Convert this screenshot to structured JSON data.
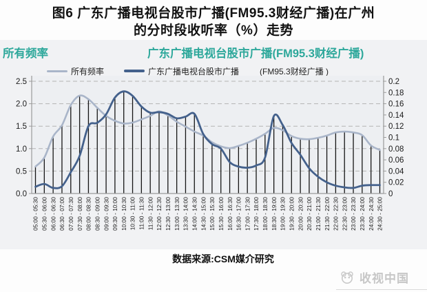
{
  "title": {
    "line1": "图6 广东广播电视台股市广播(FM95.3财经广播)在广州",
    "line2": "的分时段收听率（%）走势"
  },
  "header": {
    "left_label": "所有频率",
    "right_label": "广东广播电视台股市广播(FM95.3财经广播)",
    "color": "#2ea89b"
  },
  "legend": [
    {
      "label": "所有频率",
      "color": "#a9b5c9"
    },
    {
      "label": "广东广播电视台股市广播",
      "label_suffix": "(FM95.3财经广播 )",
      "color": "#44618c"
    }
  ],
  "footer": {
    "source": "数据来源:CSM媒介研究"
  },
  "watermark": {
    "label": "收视中国",
    "icon": "panda-tv-icon"
  },
  "chart_data": {
    "type": "line",
    "title": "广东广播电视台股市广播(FM95.3财经广播)在广州的分时段收听率（%）走势",
    "categories": [
      "05:00 - 05:30",
      "05:30 - 06:00",
      "06:00 - 06:30",
      "06:30 - 07:00",
      "07:00 - 07:30",
      "07:30 - 08:00",
      "08:00 - 08:30",
      "08:30 - 09:00",
      "09:00 - 09:30",
      "09:30 - 10:00",
      "10:00 - 10:30",
      "10:30 - 11:00",
      "11:00 - 11:30",
      "11:30 - 12:00",
      "12:00 - 12:30",
      "12:30 - 13:00",
      "13:00 - 13:30",
      "13:30 - 14:00",
      "14:00 - 14:30",
      "14:30 - 15:00",
      "15:00 - 15:30",
      "15:30 - 16:00",
      "16:00 - 16:30",
      "16:30 - 17:00",
      "17:00 - 17:30",
      "17:30 - 18:00",
      "18:00 - 18:30",
      "18:30 - 19:00",
      "19:00 - 19:30",
      "19:30 - 20:00",
      "20:00 - 20:30",
      "20:30 - 21:00",
      "21:00 - 21:30",
      "21:30 - 22:00",
      "22:00 - 22:30",
      "22:30 - 23:00",
      "23:00 - 23:30",
      "23:30 - 24:00",
      "24:00 - 24:30",
      "24:30 - 25:00"
    ],
    "series": [
      {
        "name": "所有频率",
        "axis": "left",
        "color": "#a9b5c9",
        "stroke_width": 2.6,
        "values": [
          0.6,
          0.8,
          1.27,
          1.52,
          1.97,
          2.18,
          2.1,
          1.91,
          1.73,
          1.62,
          1.56,
          1.58,
          1.65,
          1.73,
          1.83,
          1.74,
          1.6,
          1.49,
          1.38,
          1.29,
          1.14,
          1.05,
          1.01,
          1.06,
          1.13,
          1.22,
          1.33,
          1.46,
          1.41,
          1.28,
          1.22,
          1.21,
          1.24,
          1.29,
          1.36,
          1.38,
          1.36,
          1.3,
          1.07,
          0.97
        ]
      },
      {
        "name": "广东广播电视台股市广播(FM95.3财经广播)",
        "axis": "right",
        "color": "#44618c",
        "stroke_width": 2.8,
        "values": [
          0.012,
          0.017,
          0.01,
          0.013,
          0.038,
          0.067,
          0.12,
          0.126,
          0.141,
          0.171,
          0.182,
          0.174,
          0.155,
          0.144,
          0.145,
          0.142,
          0.134,
          0.137,
          0.142,
          0.106,
          0.088,
          0.08,
          0.056,
          0.048,
          0.046,
          0.05,
          0.064,
          0.138,
          0.122,
          0.09,
          0.069,
          0.045,
          0.03,
          0.02,
          0.014,
          0.011,
          0.01,
          0.014,
          0.015,
          0.015
        ]
      }
    ],
    "left_axis": {
      "min": 0,
      "max": 2.5,
      "step": 0.5,
      "ticks": [
        "0.0",
        "0.5",
        "1.0",
        "1.5",
        "2.0",
        "2.5"
      ]
    },
    "right_axis": {
      "min": 0,
      "max": 0.2,
      "step": 0.02,
      "ticks": [
        "0",
        "0.02",
        "0.04",
        "0.06",
        "0.08",
        "0.1",
        "0.12",
        "0.14",
        "0.16",
        "0.18",
        "0.2"
      ]
    },
    "grid": "horizontal-dashed",
    "drop_lines": true,
    "drop_line_color": "#141414",
    "legend_position": "top",
    "plot_bg": "#edeff2",
    "axis_color": "#9a9a9a",
    "grid_color": "#b3b3b3",
    "tick_label_color": "#1a1a1a"
  }
}
